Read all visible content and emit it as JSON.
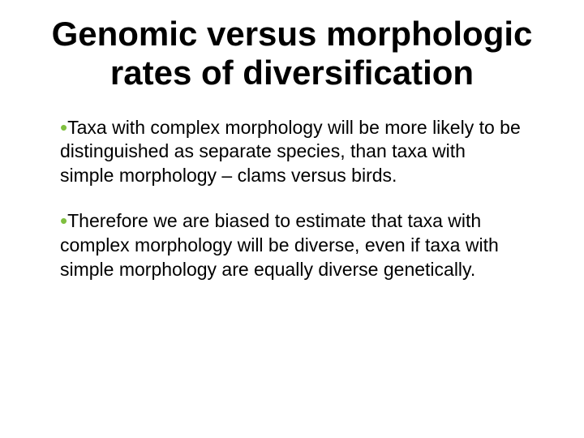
{
  "title": "Genomic versus morphologic rates of diversification",
  "bullet_color": "#7fbf3f",
  "title_fontsize": 42,
  "body_fontsize": 23,
  "text_color": "#000000",
  "background_color": "#ffffff",
  "bullets": [
    "Taxa with complex morphology will be more likely to be distinguished as separate species, than taxa with simple morphology – clams versus birds.",
    "Therefore we are biased to estimate that taxa with complex morphology will be diverse, even if taxa with simple morphology are equally diverse genetically."
  ]
}
